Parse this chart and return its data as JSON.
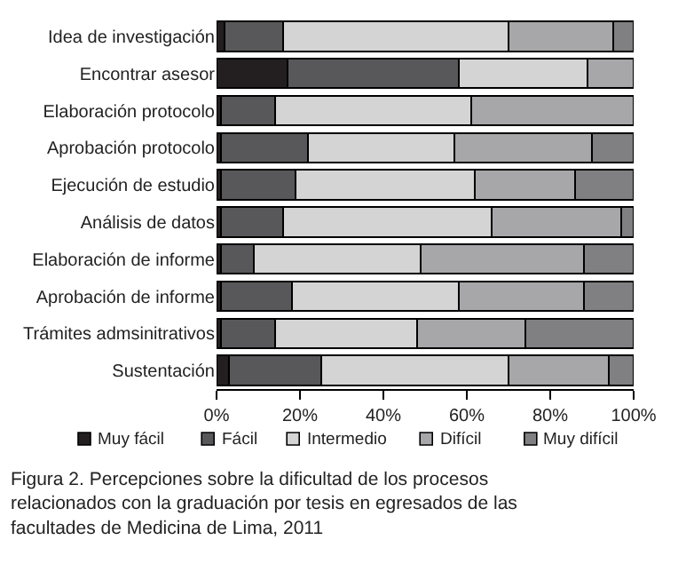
{
  "chart_data": {
    "type": "bar",
    "orientation": "horizontal",
    "stacked": true,
    "title": "Figura 2. Percepciones sobre la dificultad de los procesos relacionados con la graduación por tesis en egresados de las facultades de Medicina de Lima, 2011",
    "categories": [
      "Idea de investigación",
      "Encontrar asesor",
      "Elaboración protocolo",
      "Aprobación protocolo",
      "Ejecución de estudio",
      "Análisis de datos",
      "Elaboración de informe",
      "Aprobación de informe",
      "Trámites admsinitrativos",
      "Sustentación"
    ],
    "series": [
      {
        "name": "Muy fácil",
        "color": "#231f20",
        "values": [
          2,
          17,
          1,
          1,
          1,
          1,
          1,
          1,
          1,
          3
        ]
      },
      {
        "name": "Fácil",
        "color": "#58585a",
        "values": [
          14,
          41,
          13,
          21,
          18,
          15,
          8,
          17,
          13,
          22
        ]
      },
      {
        "name": "Intermedio",
        "color": "#d4d4d4",
        "values": [
          54,
          31,
          47,
          35,
          43,
          50,
          40,
          40,
          34,
          45
        ]
      },
      {
        "name": "Difícil",
        "color": "#a7a7a9",
        "values": [
          25,
          11,
          39,
          33,
          24,
          31,
          39,
          30,
          26,
          24
        ]
      },
      {
        "name": "Muy difícil",
        "color": "#808082",
        "values": [
          5,
          0,
          0,
          10,
          14,
          3,
          12,
          12,
          26,
          6
        ]
      }
    ],
    "xlim": [
      0,
      100
    ],
    "xticks": [
      {
        "value": 0,
        "label": "0%"
      },
      {
        "value": 20,
        "label": "20%"
      },
      {
        "value": 40,
        "label": "40%"
      },
      {
        "value": 60,
        "label": "60%"
      },
      {
        "value": 80,
        "label": "80%"
      },
      {
        "value": 100,
        "label": "100%"
      }
    ],
    "legend": "bottom"
  }
}
